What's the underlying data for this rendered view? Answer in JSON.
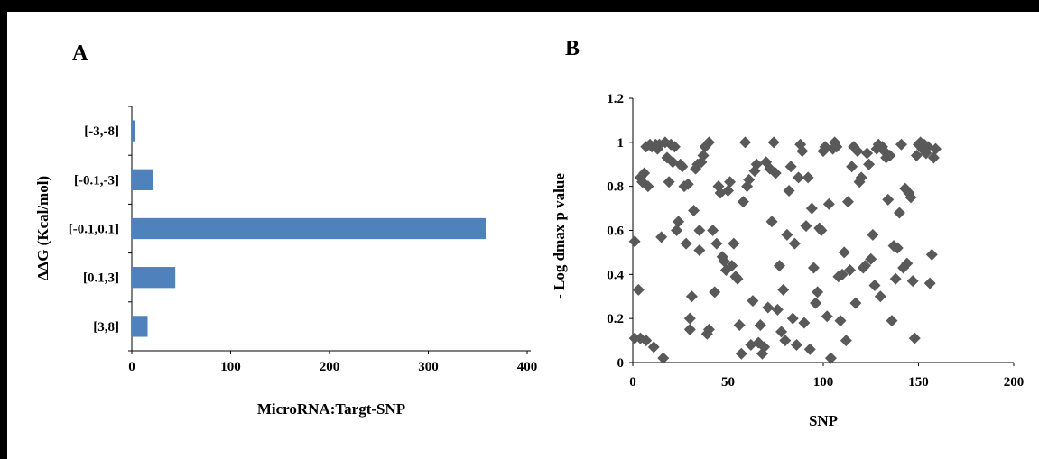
{
  "figure": {
    "panel_a_label": "A",
    "panel_b_label": "B"
  },
  "chart_data": [
    {
      "type": "bar",
      "orientation": "horizontal",
      "categories": [
        "[-3,-8]",
        "[-0.1,-3]",
        "[-0.1,0.1]",
        "[0.1,3]",
        "[3,8]"
      ],
      "values": [
        3,
        21,
        358,
        44,
        16
      ],
      "xlabel": "MicroRNA:Targt-SNP",
      "ylabel": "ΔΔG (Kcal/mol)",
      "xlim": [
        0,
        400
      ],
      "xticks": [
        0,
        100,
        200,
        300,
        400
      ],
      "grid": false,
      "colors": {
        "bar": "#4f81bd"
      }
    },
    {
      "type": "scatter",
      "marker": "diamond",
      "xlabel": "SNP",
      "ylabel": "- Log dmax p value",
      "xlim": [
        0,
        200
      ],
      "ylim": [
        0,
        1.2
      ],
      "xticks": [
        0,
        50,
        100,
        150,
        200
      ],
      "yticks": [
        "0",
        "0.2",
        "0.4",
        "0.6",
        "0.8",
        "1",
        "1.2"
      ],
      "grid": false,
      "colors": {
        "marker": "#595959"
      },
      "points": [
        [
          1,
          0.11
        ],
        [
          1,
          0.55
        ],
        [
          3,
          0.33
        ],
        [
          4,
          0.11
        ],
        [
          4,
          0.84
        ],
        [
          5,
          0.82
        ],
        [
          6,
          0.86
        ],
        [
          7,
          0.1
        ],
        [
          7,
          0.98
        ],
        [
          8,
          0.8
        ],
        [
          9,
          0.99
        ],
        [
          10,
          0.98
        ],
        [
          11,
          0.07
        ],
        [
          12,
          0.99
        ],
        [
          13,
          0.97
        ],
        [
          14,
          0.99
        ],
        [
          15,
          0.57
        ],
        [
          16,
          0.02
        ],
        [
          17,
          1.0
        ],
        [
          18,
          0.93
        ],
        [
          19,
          0.82
        ],
        [
          20,
          0.99
        ],
        [
          21,
          0.91
        ],
        [
          22,
          0.98
        ],
        [
          23,
          0.6
        ],
        [
          24,
          0.64
        ],
        [
          25,
          0.9
        ],
        [
          26,
          0.89
        ],
        [
          27,
          0.8
        ],
        [
          28,
          0.54
        ],
        [
          29,
          0.81
        ],
        [
          30,
          0.15
        ],
        [
          30,
          0.2
        ],
        [
          31,
          0.3
        ],
        [
          32,
          0.69
        ],
        [
          33,
          0.88
        ],
        [
          34,
          0.9
        ],
        [
          35,
          0.6
        ],
        [
          35,
          0.51
        ],
        [
          36,
          0.91
        ],
        [
          37,
          0.94
        ],
        [
          38,
          0.98
        ],
        [
          39,
          0.13
        ],
        [
          40,
          0.15
        ],
        [
          40,
          1.0
        ],
        [
          42,
          0.6
        ],
        [
          43,
          0.32
        ],
        [
          44,
          0.54
        ],
        [
          45,
          0.8
        ],
        [
          46,
          0.77
        ],
        [
          47,
          0.48
        ],
        [
          48,
          0.46
        ],
        [
          49,
          0.42
        ],
        [
          50,
          0.78
        ],
        [
          51,
          0.82
        ],
        [
          52,
          0.44
        ],
        [
          53,
          0.54
        ],
        [
          54,
          0.39
        ],
        [
          55,
          0.38
        ],
        [
          56,
          0.17
        ],
        [
          57,
          0.04
        ],
        [
          58,
          0.73
        ],
        [
          59,
          1.0
        ],
        [
          60,
          0.8
        ],
        [
          61,
          0.83
        ],
        [
          62,
          0.08
        ],
        [
          63,
          0.28
        ],
        [
          64,
          0.87
        ],
        [
          65,
          0.9
        ],
        [
          66,
          0.09
        ],
        [
          67,
          0.17
        ],
        [
          68,
          0.04
        ],
        [
          69,
          0.07
        ],
        [
          70,
          0.91
        ],
        [
          71,
          0.25
        ],
        [
          72,
          0.88
        ],
        [
          73,
          0.64
        ],
        [
          74,
          1.0
        ],
        [
          75,
          0.86
        ],
        [
          76,
          0.24
        ],
        [
          77,
          0.44
        ],
        [
          78,
          0.14
        ],
        [
          79,
          0.33
        ],
        [
          80,
          0.1
        ],
        [
          81,
          0.58
        ],
        [
          82,
          0.78
        ],
        [
          83,
          0.89
        ],
        [
          84,
          0.2
        ],
        [
          85,
          0.54
        ],
        [
          86,
          0.08
        ],
        [
          87,
          0.84
        ],
        [
          88,
          0.99
        ],
        [
          89,
          0.96
        ],
        [
          90,
          0.18
        ],
        [
          91,
          0.62
        ],
        [
          92,
          0.84
        ],
        [
          93,
          0.06
        ],
        [
          94,
          0.7
        ],
        [
          95,
          0.43
        ],
        [
          96,
          0.27
        ],
        [
          97,
          0.32
        ],
        [
          98,
          0.61
        ],
        [
          99,
          0.6
        ],
        [
          100,
          0.96
        ],
        [
          101,
          0.98
        ],
        [
          102,
          0.21
        ],
        [
          103,
          0.72
        ],
        [
          104,
          0.02
        ],
        [
          105,
          0.97
        ],
        [
          106,
          1.0
        ],
        [
          107,
          0.98
        ],
        [
          108,
          0.39
        ],
        [
          109,
          0.19
        ],
        [
          110,
          0.4
        ],
        [
          111,
          0.5
        ],
        [
          112,
          0.1
        ],
        [
          113,
          0.73
        ],
        [
          114,
          0.42
        ],
        [
          115,
          0.89
        ],
        [
          116,
          0.98
        ],
        [
          117,
          0.27
        ],
        [
          118,
          0.96
        ],
        [
          119,
          0.82
        ],
        [
          120,
          0.84
        ],
        [
          121,
          0.43
        ],
        [
          122,
          0.44
        ],
        [
          123,
          0.95
        ],
        [
          124,
          0.9
        ],
        [
          125,
          0.47
        ],
        [
          126,
          0.58
        ],
        [
          127,
          0.35
        ],
        [
          128,
          0.97
        ],
        [
          129,
          0.99
        ],
        [
          130,
          0.3
        ],
        [
          131,
          0.98
        ],
        [
          132,
          0.96
        ],
        [
          133,
          0.93
        ],
        [
          134,
          0.74
        ],
        [
          135,
          0.94
        ],
        [
          136,
          0.19
        ],
        [
          137,
          0.53
        ],
        [
          138,
          0.38
        ],
        [
          139,
          0.52
        ],
        [
          140,
          0.68
        ],
        [
          141,
          0.99
        ],
        [
          142,
          0.43
        ],
        [
          143,
          0.79
        ],
        [
          144,
          0.45
        ],
        [
          145,
          0.77
        ],
        [
          146,
          0.75
        ],
        [
          147,
          0.37
        ],
        [
          148,
          0.11
        ],
        [
          149,
          0.94
        ],
        [
          150,
          0.99
        ],
        [
          151,
          1.0
        ],
        [
          152,
          0.97
        ],
        [
          153,
          0.99
        ],
        [
          154,
          0.95
        ],
        [
          155,
          0.98
        ],
        [
          156,
          0.36
        ],
        [
          157,
          0.49
        ],
        [
          158,
          0.93
        ],
        [
          159,
          0.97
        ]
      ]
    }
  ]
}
